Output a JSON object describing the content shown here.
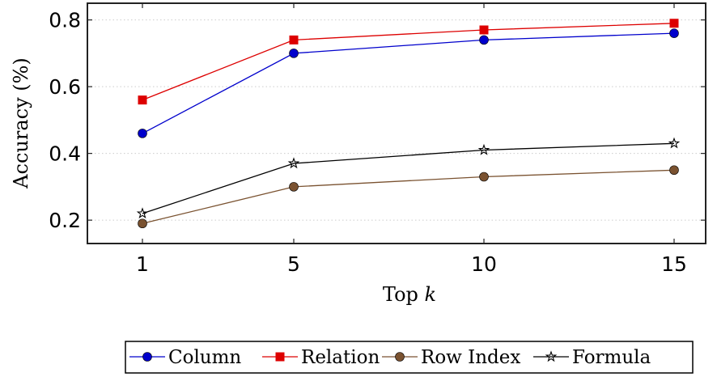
{
  "chart_data": {
    "type": "line",
    "x": [
      1,
      5,
      10,
      15
    ],
    "x_tick_labels": [
      "1",
      "5",
      "10",
      "15"
    ],
    "xlabel_prefix": "Top ",
    "xlabel_var": "k",
    "ylabel": "Accuracy (%)",
    "y_ticks": [
      0.2,
      0.4,
      0.6,
      0.8
    ],
    "y_tick_labels": [
      "0.2",
      "0.4",
      "0.6",
      "0.8"
    ],
    "ylim": [
      0.13,
      0.85
    ],
    "grid": "horizontal dotted",
    "legend_position": "bottom",
    "series": [
      {
        "name": "Column",
        "values": [
          0.46,
          0.7,
          0.74,
          0.76
        ],
        "color": "#0000cc",
        "marker": "circle"
      },
      {
        "name": "Relation",
        "values": [
          0.56,
          0.74,
          0.77,
          0.79
        ],
        "color": "#dd0000",
        "marker": "square"
      },
      {
        "name": "Row Index",
        "values": [
          0.19,
          0.3,
          0.33,
          0.35
        ],
        "color": "#7a5230",
        "marker": "circle"
      },
      {
        "name": "Formula",
        "values": [
          0.22,
          0.37,
          0.41,
          0.43
        ],
        "color": "#000000",
        "marker": "star"
      }
    ]
  }
}
